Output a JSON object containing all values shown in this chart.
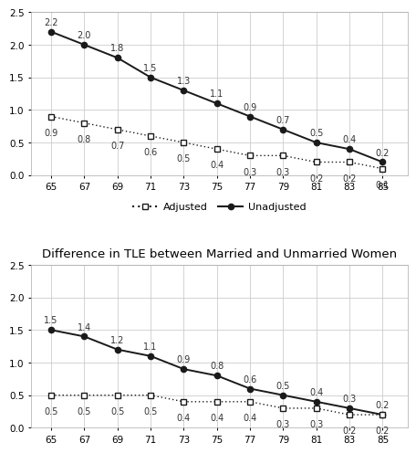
{
  "top_chart": {
    "x": [
      65,
      67,
      69,
      71,
      73,
      75,
      77,
      79,
      81,
      83,
      85
    ],
    "unadjusted": [
      2.2,
      2.0,
      1.8,
      1.5,
      1.3,
      1.1,
      0.9,
      0.7,
      0.5,
      0.4,
      0.2
    ],
    "adjusted": [
      0.9,
      0.8,
      0.7,
      0.6,
      0.5,
      0.4,
      0.3,
      0.3,
      0.2,
      0.2,
      0.1
    ],
    "ylim": [
      0.0,
      2.5
    ],
    "yticks": [
      0.0,
      0.5,
      1.0,
      1.5,
      2.0,
      2.5
    ],
    "title": ""
  },
  "bottom_chart": {
    "x": [
      65,
      67,
      69,
      71,
      73,
      75,
      77,
      79,
      81,
      83,
      85
    ],
    "unadjusted": [
      1.5,
      1.4,
      1.2,
      1.1,
      0.9,
      0.8,
      0.6,
      0.5,
      0.4,
      0.3,
      0.2
    ],
    "adjusted": [
      0.5,
      0.5,
      0.5,
      0.5,
      0.4,
      0.4,
      0.4,
      0.3,
      0.3,
      0.2,
      0.2
    ],
    "ylim": [
      0.0,
      2.5
    ],
    "yticks": [
      0.0,
      0.5,
      1.0,
      1.5,
      2.0,
      2.5
    ],
    "title": "Difference in TLE between Married and Unmarried Women"
  },
  "line_color": "#1a1a1a",
  "bg_color": "#ffffff",
  "grid_color": "#cccccc",
  "annotation_fontsize": 7.0,
  "title_fontsize": 9.5,
  "tick_fontsize": 7.5
}
